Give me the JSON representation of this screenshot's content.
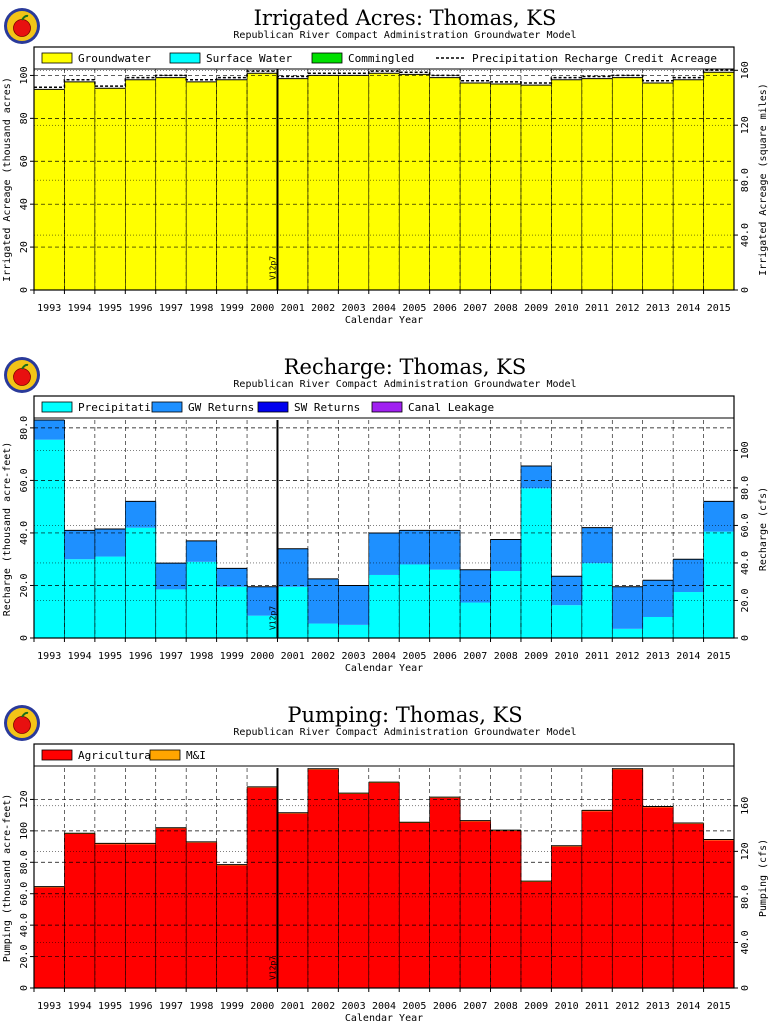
{
  "colors": {
    "groundwater": "#ffff00",
    "surface_water": "#00ffff",
    "commingled": "#00e000",
    "precipitation": "#00ffff",
    "gw_returns": "#1e90ff",
    "sw_returns": "#0000ee",
    "canal_leakage": "#a020f0",
    "agricultural": "#ff0000",
    "mi": "#ffa500",
    "logo_apple": "#e81010"
  },
  "icons": [
    "apple-logo-icon"
  ],
  "version_marker": "V12p7",
  "charts": {
    "irrigated": {
      "title": "Irrigated Acres: Thomas, KS",
      "subtitle": "Republican River Compact Administration Groundwater Model",
      "xlabel": "Calendar Year",
      "ylabel_left": "Irrigated Acreage (thousand acres)",
      "ylabel_right": "Irrigated Acreage (square miles)"
    },
    "recharge": {
      "title": "Recharge: Thomas, KS",
      "subtitle": "Republican River Compact Administration Groundwater Model",
      "xlabel": "Calendar Year",
      "ylabel_left": "Recharge (thousand acre-feet)",
      "ylabel_right": "Recharge (cfs)"
    },
    "pumping": {
      "title": "Pumping: Thomas, KS",
      "subtitle": "Republican River Compact Administration Groundwater Model",
      "xlabel": "Calendar Year",
      "ylabel_left": "Pumping (thousand acre-feet)",
      "ylabel_right": "Pumping (cfs)"
    }
  },
  "chart_data": [
    {
      "type": "bar",
      "title": "Irrigated Acres: Thomas, KS",
      "categories": [
        "1993",
        "1994",
        "1995",
        "1996",
        "1997",
        "1998",
        "1999",
        "2000",
        "2001",
        "2002",
        "2003",
        "2004",
        "2005",
        "2006",
        "2007",
        "2008",
        "2009",
        "2010",
        "2011",
        "2012",
        "2013",
        "2014",
        "2015"
      ],
      "series": [
        {
          "name": "Groundwater",
          "values": [
            93.5,
            97,
            94,
            98,
            99,
            97,
            98,
            101,
            98.5,
            100,
            100,
            101,
            100.5,
            99,
            96.5,
            96,
            95.5,
            98,
            98.5,
            99,
            96.5,
            98,
            101.5
          ]
        },
        {
          "name": "Surface Water",
          "values": [
            0,
            0,
            0,
            0,
            0,
            0,
            0,
            0,
            0,
            0,
            0,
            0,
            0,
            0,
            0,
            0,
            0,
            0,
            0,
            0,
            0,
            0,
            0
          ]
        },
        {
          "name": "Commingled",
          "values": [
            0,
            0,
            0,
            0,
            0,
            0,
            0,
            0,
            0,
            0,
            0,
            0,
            0,
            0,
            0,
            0,
            0,
            0,
            0,
            0,
            0,
            0,
            0
          ]
        }
      ],
      "line_series": {
        "name": "Precipitation Recharge Credit Acreage",
        "values": [
          94.5,
          98,
          95,
          99,
          100,
          98,
          99,
          102,
          99.5,
          101,
          101,
          102,
          101.5,
          100,
          97.5,
          97,
          96.5,
          99,
          99.5,
          100,
          97.5,
          99,
          102.5
        ]
      },
      "left_ticks": [
        "0",
        "20",
        "40",
        "60",
        "80",
        "100"
      ],
      "right_ticks": [
        "0",
        "40.0",
        "80.0",
        "120",
        "160"
      ],
      "xlabel": "Calendar Year",
      "ylabel": "Irrigated Acreage (thousand acres)",
      "y2label": "Irrigated Acreage (square miles)",
      "ylim": [
        0,
        103
      ],
      "grid": true,
      "legend": "top"
    },
    {
      "type": "bar",
      "title": "Recharge: Thomas, KS",
      "categories": [
        "1993",
        "1994",
        "1995",
        "1996",
        "1997",
        "1998",
        "1999",
        "2000",
        "2001",
        "2002",
        "2003",
        "2004",
        "2005",
        "2006",
        "2007",
        "2008",
        "2009",
        "2010",
        "2011",
        "2012",
        "2013",
        "2014",
        "2015"
      ],
      "series": [
        {
          "name": "Precipitation",
          "values": [
            75.5,
            30,
            31,
            42,
            18.5,
            29,
            19.5,
            8.5,
            19.5,
            5.5,
            5,
            24,
            28,
            26,
            13.5,
            25.5,
            57,
            12.5,
            28.5,
            3.5,
            8,
            17.5,
            40.5
          ]
        },
        {
          "name": "GW Returns",
          "values": [
            7.5,
            11,
            10.5,
            10,
            10,
            8,
            7,
            11,
            14.5,
            17,
            15,
            16,
            13,
            15,
            12.5,
            12,
            8.5,
            11,
            13.5,
            16,
            14,
            12.5,
            11.5
          ]
        },
        {
          "name": "SW Returns",
          "values": [
            0,
            0,
            0,
            0,
            0,
            0,
            0,
            0,
            0,
            0,
            0,
            0,
            0,
            0,
            0,
            0,
            0,
            0,
            0,
            0,
            0,
            0,
            0
          ]
        },
        {
          "name": "Canal Leakage",
          "values": [
            0,
            0,
            0,
            0,
            0,
            0,
            0,
            0,
            0,
            0,
            0,
            0,
            0,
            0,
            0,
            0,
            0,
            0,
            0,
            0,
            0,
            0,
            0
          ]
        }
      ],
      "left_ticks": [
        "0",
        "20.0",
        "40.0",
        "60.0",
        "80.0"
      ],
      "right_ticks": [
        "0",
        "20.0",
        "40.0",
        "60.0",
        "80.0",
        "100"
      ],
      "xlabel": "Calendar Year",
      "ylabel": "Recharge (thousand acre-feet)",
      "y2label": "Recharge (cfs)",
      "ylim": [
        0,
        83
      ],
      "grid": true,
      "legend": "top"
    },
    {
      "type": "bar",
      "title": "Pumping: Thomas, KS",
      "categories": [
        "1993",
        "1994",
        "1995",
        "1996",
        "1997",
        "1998",
        "1999",
        "2000",
        "2001",
        "2002",
        "2003",
        "2004",
        "2005",
        "2006",
        "2007",
        "2008",
        "2009",
        "2010",
        "2011",
        "2012",
        "2013",
        "2014",
        "2015"
      ],
      "series": [
        {
          "name": "Agricultural",
          "values": [
            64,
            98,
            91.5,
            91.5,
            101.5,
            92.5,
            78,
            127.5,
            111,
            139,
            123.5,
            130.5,
            105,
            121,
            106,
            100,
            67.5,
            90,
            112.5,
            139,
            115,
            104.5,
            94
          ]
        },
        {
          "name": "M&I",
          "values": [
            0.5,
            0.5,
            0.5,
            0.5,
            0.5,
            0.5,
            0.5,
            0.5,
            0.5,
            0.5,
            0.5,
            0.5,
            0.5,
            0.5,
            0.5,
            0.5,
            0.5,
            0.5,
            0.5,
            0.5,
            0.5,
            0.5,
            0.5
          ]
        }
      ],
      "left_ticks": [
        "0",
        "20.0",
        "40.0",
        "60.0",
        "80.0",
        "100",
        "120"
      ],
      "right_ticks": [
        "0",
        "40.0",
        "80.0",
        "120",
        "160"
      ],
      "xlabel": "Calendar Year",
      "ylabel": "Pumping (thousand acre-feet)",
      "y2label": "Pumping (cfs)",
      "ylim": [
        0,
        140
      ],
      "grid": true,
      "legend": "top"
    }
  ]
}
